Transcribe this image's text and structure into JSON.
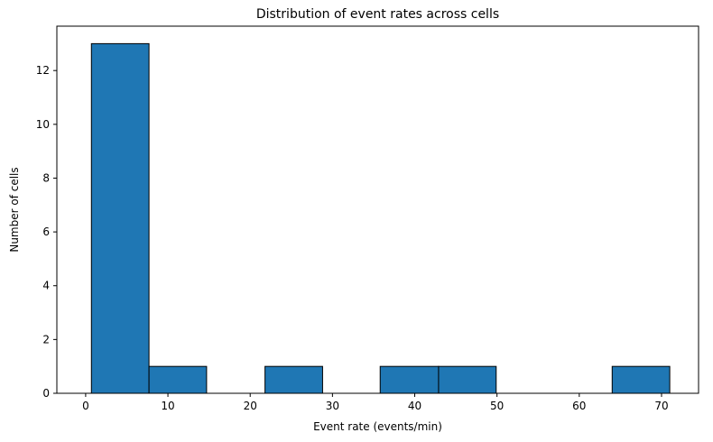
{
  "chart_data": {
    "type": "bar",
    "histogram": true,
    "title": "Distribution of event rates across cells",
    "xlabel": "Event rate (events/min)",
    "ylabel": "Number of cells",
    "bins": [
      {
        "start": 0.7,
        "end": 7.7,
        "count": 13
      },
      {
        "start": 7.7,
        "end": 14.7,
        "count": 1
      },
      {
        "start": 14.7,
        "end": 21.8,
        "count": 0
      },
      {
        "start": 21.8,
        "end": 28.8,
        "count": 1
      },
      {
        "start": 28.8,
        "end": 35.8,
        "count": 0
      },
      {
        "start": 35.8,
        "end": 42.9,
        "count": 1
      },
      {
        "start": 42.9,
        "end": 49.9,
        "count": 1
      },
      {
        "start": 49.9,
        "end": 56.9,
        "count": 0
      },
      {
        "start": 56.9,
        "end": 64.0,
        "count": 0
      },
      {
        "start": 64.0,
        "end": 71.0,
        "count": 1
      }
    ],
    "xlim": [
      -3.5,
      74.5
    ],
    "ylim": [
      0,
      13.65
    ],
    "xticks": [
      "0",
      "10",
      "20",
      "30",
      "40",
      "50",
      "60",
      "70"
    ],
    "yticks": [
      "0",
      "2",
      "4",
      "6",
      "8",
      "10",
      "12"
    ],
    "bar_color": "#1f77b4",
    "edge_color": "#000000",
    "grid": false,
    "legend": "none"
  }
}
